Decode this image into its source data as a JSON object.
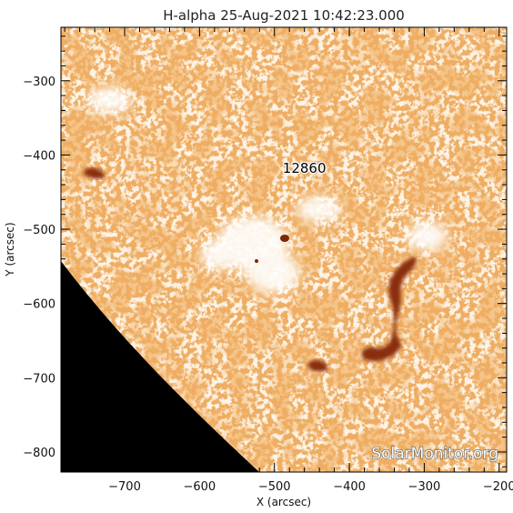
{
  "title": "H-alpha 25-Aug-2021 10:42:23.000",
  "axes": {
    "xlabel": "X (arcsec)",
    "ylabel": "Y (arcsec)",
    "xlim": [
      -785,
      -190
    ],
    "ylim": [
      -827,
      -228
    ],
    "xticks": [
      {
        "value": -700,
        "label": "−700"
      },
      {
        "value": -600,
        "label": "−600"
      },
      {
        "value": -500,
        "label": "−500"
      },
      {
        "value": -400,
        "label": "−400"
      },
      {
        "value": -300,
        "label": "−300"
      },
      {
        "value": -200,
        "label": "−200"
      }
    ],
    "yticks": [
      {
        "value": -300,
        "label": "−300"
      },
      {
        "value": -400,
        "label": "−400"
      },
      {
        "value": -500,
        "label": "−500"
      },
      {
        "value": -600,
        "label": "−600"
      },
      {
        "value": -700,
        "label": "−700"
      },
      {
        "value": -800,
        "label": "−800"
      }
    ]
  },
  "region": {
    "label": "12860",
    "x": -460,
    "y": -418
  },
  "watermark": "SolarMonitor.org",
  "colors": {
    "background": "#fdf3e6",
    "texture_light": "#f4b27a",
    "texture_mid": "#e07a2e",
    "texture_dark": "#b04a0c",
    "filament": "#8a2e08",
    "space": "#000000",
    "frame": "#000000"
  }
}
